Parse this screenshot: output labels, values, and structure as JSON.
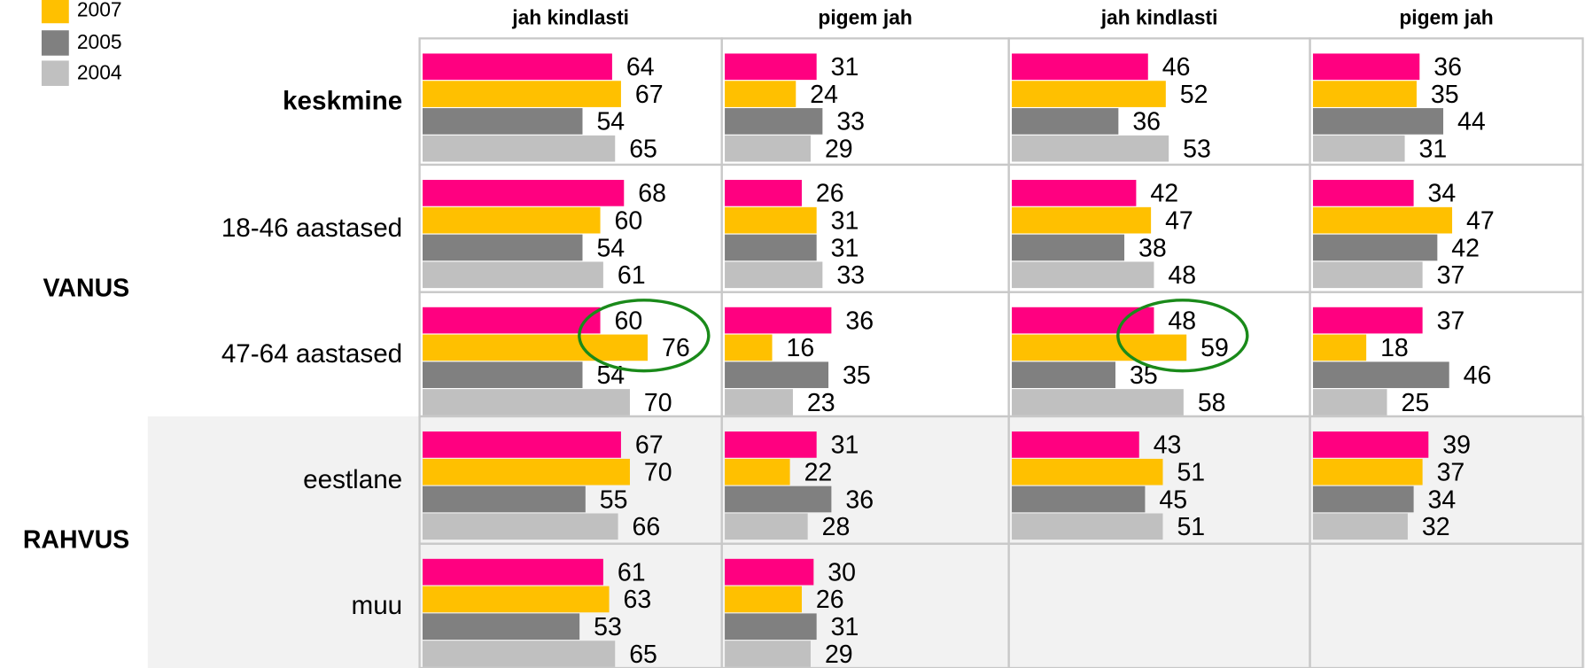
{
  "chart_data": {
    "type": "bar",
    "columns": [
      "jah kindlasti",
      "pigem jah",
      "jah kindlasti",
      "pigem jah"
    ],
    "categories": [
      "keskmine",
      "18-46 aastased",
      "47-64 aastased",
      "eestlane",
      "muu"
    ],
    "groups": [
      {
        "label": "VANUS",
        "rows": [
          1,
          2
        ]
      },
      {
        "label": "RAHVUS",
        "rows": [
          3,
          4
        ]
      }
    ],
    "series": [
      {
        "color": "#ff0080",
        "values": [
          [
            64,
            68,
            60,
            67,
            61
          ],
          [
            31,
            26,
            36,
            31,
            30
          ],
          [
            46,
            42,
            48,
            43,
            null
          ],
          [
            36,
            34,
            37,
            39,
            null
          ]
        ]
      },
      {
        "name": "2007",
        "color": "#ffc000",
        "values": [
          [
            67,
            60,
            76,
            70,
            63
          ],
          [
            24,
            31,
            16,
            22,
            26
          ],
          [
            52,
            47,
            59,
            51,
            null
          ],
          [
            35,
            47,
            18,
            37,
            null
          ]
        ]
      },
      {
        "name": "2005",
        "color": "#808080",
        "values": [
          [
            54,
            54,
            54,
            55,
            53
          ],
          [
            33,
            31,
            35,
            36,
            31
          ],
          [
            36,
            38,
            35,
            45,
            null
          ],
          [
            44,
            42,
            46,
            34,
            null
          ]
        ]
      },
      {
        "name": "2004",
        "color": "#c0c0c0",
        "values": [
          [
            65,
            61,
            70,
            66,
            65
          ],
          [
            29,
            33,
            23,
            28,
            29
          ],
          [
            53,
            48,
            58,
            51,
            null
          ],
          [
            31,
            37,
            25,
            32,
            null
          ]
        ]
      }
    ]
  }
}
